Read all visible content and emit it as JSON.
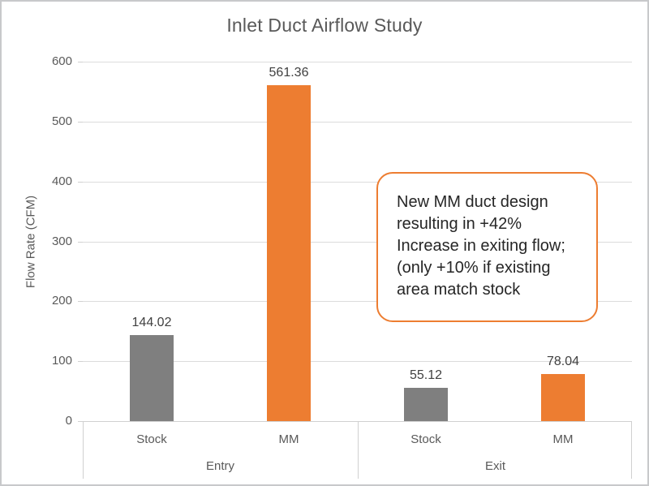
{
  "frame": {
    "background": "#FFFFFF",
    "border_color": "#C8C9CB"
  },
  "chart_data": {
    "type": "bar",
    "title": "Inlet Duct Airflow Study",
    "xlabel": "",
    "ylabel": "Flow Rate (CFM)",
    "ylim": [
      0,
      600
    ],
    "ytick_step": 100,
    "yticks": [
      0,
      100,
      200,
      300,
      400,
      500,
      600
    ],
    "grid": true,
    "legend": "none",
    "value_labels_visible": true,
    "groups": [
      {
        "label": "Entry",
        "bars": [
          {
            "label": "Stock",
            "value": 144.02,
            "value_label": "144.02",
            "color": "#7F7F7F"
          },
          {
            "label": "MM",
            "value": 561.36,
            "value_label": "561.36",
            "color": "#ED7D31"
          }
        ]
      },
      {
        "label": "Exit",
        "bars": [
          {
            "label": "Stock",
            "value": 55.12,
            "value_label": "55.12",
            "color": "#7F7F7F"
          },
          {
            "label": "MM",
            "value": 78.04,
            "value_label": "78.04",
            "color": "#ED7D31"
          }
        ]
      }
    ]
  },
  "annotation": {
    "lines": [
      "New MM duct design",
      "resulting in +42%",
      "Increase in exiting flow;",
      "(only +10% if existing",
      "area match stock"
    ],
    "border_color": "#ED7D31",
    "fill": "#FFFFFF",
    "text_color": "#262626"
  },
  "colors": {
    "bar_stock": "#7F7F7F",
    "bar_mm": "#ED7D31",
    "gridline": "#DCDCDC",
    "axis_line": "#D0D0D0",
    "axis_text": "#595959",
    "title_text": "#595959",
    "value_label_text": "#404040"
  }
}
